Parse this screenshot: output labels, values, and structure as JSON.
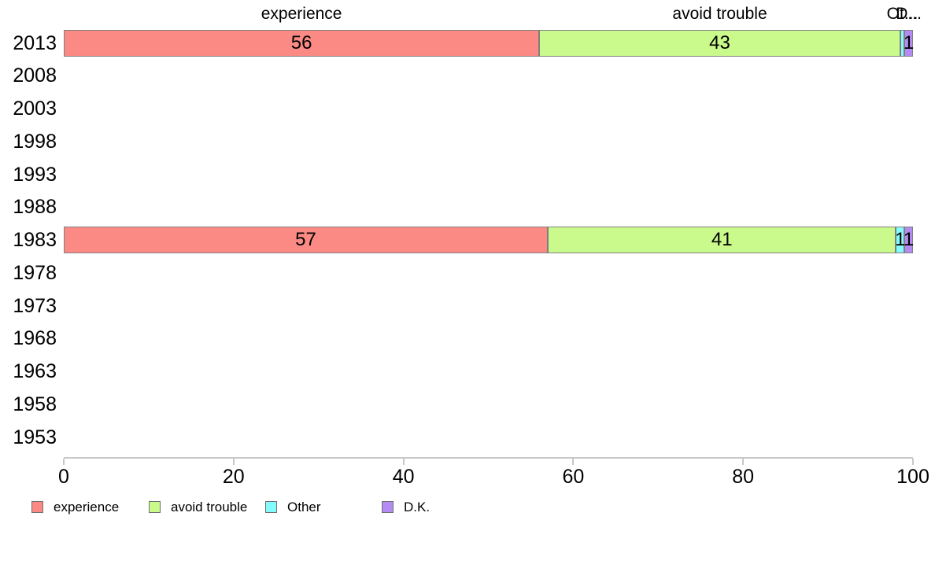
{
  "chart_data": {
    "type": "bar",
    "orientation": "horizontal",
    "stacked": true,
    "title": "",
    "xlabel": "",
    "ylabel": "",
    "xlim": [
      0,
      100
    ],
    "grid": false,
    "legend_position": "bottom",
    "categories": [
      "2013",
      "2008",
      "2003",
      "1998",
      "1993",
      "1988",
      "1983",
      "1978",
      "1973",
      "1968",
      "1963",
      "1958",
      "1953"
    ],
    "x_ticks": [
      "0",
      "20",
      "40",
      "60",
      "80",
      "100"
    ],
    "x_tick_values": [
      0,
      20,
      40,
      60,
      80,
      100
    ],
    "series": [
      {
        "name": "experience",
        "color": "#fc8a84",
        "values": [
          56,
          null,
          null,
          null,
          null,
          null,
          57,
          null,
          null,
          null,
          null,
          null,
          null
        ],
        "labels": [
          "56",
          "",
          "",
          "",
          "",
          "",
          "57",
          "",
          "",
          "",
          "",
          "",
          ""
        ]
      },
      {
        "name": "avoid trouble",
        "color": "#cbfa8c",
        "values": [
          42.5,
          null,
          null,
          null,
          null,
          null,
          41,
          null,
          null,
          null,
          null,
          null,
          null
        ],
        "labels": [
          "43",
          "",
          "",
          "",
          "",
          "",
          "41",
          "",
          "",
          "",
          "",
          "",
          ""
        ]
      },
      {
        "name": "Other",
        "color": "#84fbfd",
        "values": [
          0.5,
          null,
          null,
          null,
          null,
          null,
          1,
          null,
          null,
          null,
          null,
          null,
          null
        ],
        "labels": [
          "",
          "",
          "",
          "",
          "",
          "",
          "1",
          "",
          "",
          "",
          "",
          "",
          ""
        ]
      },
      {
        "name": "D.K.",
        "color": "#b38bf2",
        "values": [
          1,
          null,
          null,
          null,
          null,
          null,
          1,
          null,
          null,
          null,
          null,
          null,
          null
        ],
        "labels": [
          "1",
          "",
          "",
          "",
          "",
          "",
          "1",
          "",
          "",
          "",
          "",
          "",
          ""
        ]
      }
    ],
    "column_headers": [
      {
        "text": "experience",
        "series_index": 0
      },
      {
        "text": "avoid trouble",
        "series_index": 1
      },
      {
        "text": "Ot...",
        "series_index": 2
      },
      {
        "text": "D...",
        "series_index": 3
      }
    ],
    "legend": [
      {
        "label": "experience",
        "color": "#fc8a84"
      },
      {
        "label": "avoid trouble",
        "color": "#cbfa8c"
      },
      {
        "label": "Other",
        "color": "#84fbfd"
      },
      {
        "label": "D.K.",
        "color": "#b38bf2"
      }
    ]
  }
}
